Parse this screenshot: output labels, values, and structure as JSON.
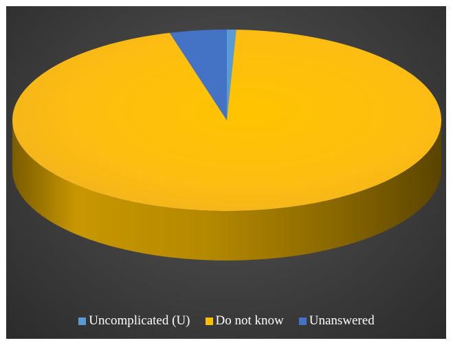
{
  "chart_data": {
    "type": "pie",
    "title": "",
    "legend_position": "bottom",
    "style": "3d",
    "slices": [
      {
        "label": "Uncomplicated (U)",
        "value": 0.7,
        "color": "#5B9BD5"
      },
      {
        "label": "Do not know",
        "value": 95.0,
        "color": "#FFC000"
      },
      {
        "label": "Unanswered",
        "value": 4.3,
        "color": "#4472C4"
      }
    ]
  },
  "colors": {
    "background": "#3a3a3a",
    "frame": "#ffffff",
    "legend_text": "#ffffff"
  }
}
